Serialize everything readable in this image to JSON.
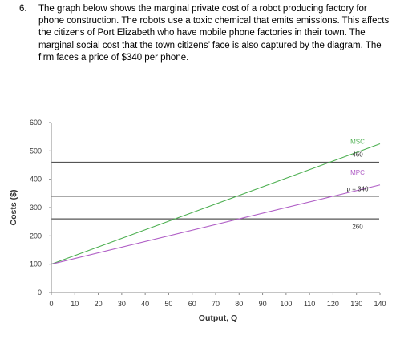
{
  "question": {
    "number": "6.",
    "text": "The graph below shows the marginal private cost of a robot producing factory for phone construction. The robots use a toxic chemical that emits emissions. This affects the citizens of Port Elizabeth who have mobile phone factories in their town. The marginal social cost that the town citizens’ face is also captured by the diagram. The firm faces a price of $340 per phone."
  },
  "chart_data": {
    "type": "line",
    "xlabel": "Output, Q",
    "ylabel": "Costs ($)",
    "xlim": [
      0,
      140
    ],
    "ylim": [
      0,
      600
    ],
    "xticks": [
      0,
      10,
      20,
      30,
      40,
      50,
      60,
      70,
      80,
      90,
      100,
      110,
      120,
      130,
      140
    ],
    "yticks": [
      0,
      100,
      200,
      300,
      400,
      500,
      600
    ],
    "grid": false,
    "series": [
      {
        "name": "MSC",
        "color": "#4caf50",
        "x": [
          0,
          140
        ],
        "y": [
          100,
          525
        ]
      },
      {
        "name": "MPC",
        "color": "#b05fc6",
        "x": [
          0,
          140
        ],
        "y": [
          100,
          380
        ]
      }
    ],
    "hlines": [
      {
        "y": 460,
        "label": "460",
        "color": "#555555"
      },
      {
        "y": 340,
        "label": "p = 340",
        "color": "#555555"
      },
      {
        "y": 260,
        "label": "260",
        "color": "#555555"
      }
    ]
  }
}
